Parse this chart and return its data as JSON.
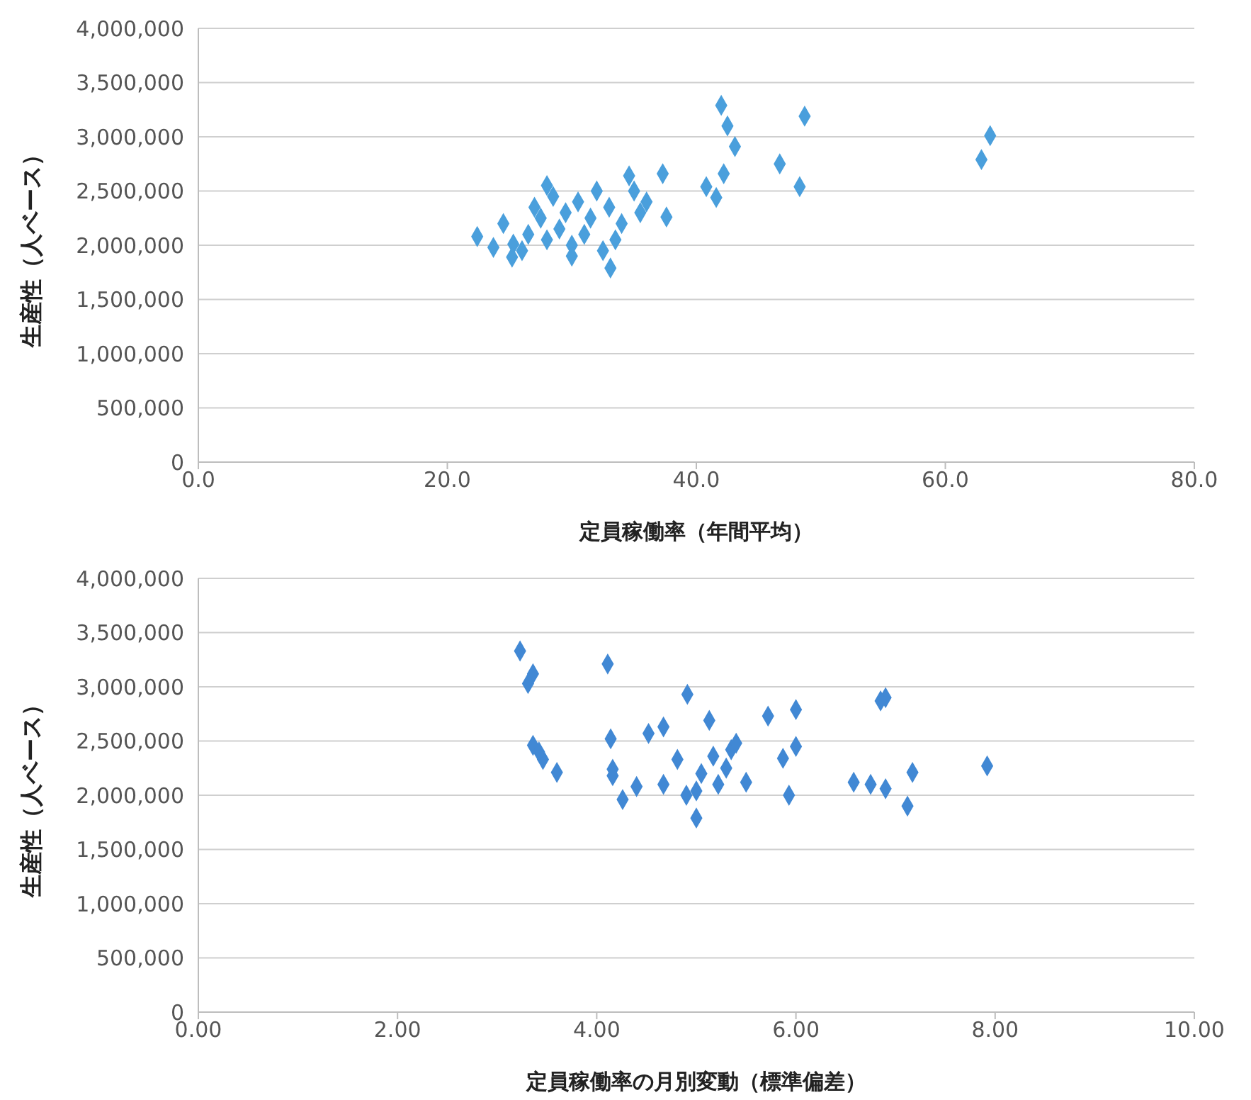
{
  "chart_data": [
    {
      "type": "scatter",
      "xlabel": "定員稼働率（年間平均）",
      "ylabel": "生産性（人ベース）",
      "color": "#4a9fdc",
      "marker": "diamond",
      "grid": "y",
      "x": [
        63.6,
        62.9,
        48.7,
        48.3,
        46.7,
        42.0,
        42.5,
        43.1,
        42.2,
        40.8,
        41.6,
        37.3,
        37.6,
        34.6,
        33.1,
        35.5,
        36.0,
        34.0,
        33.0,
        32.0,
        31.5,
        31.0,
        30.5,
        30.0,
        29.5,
        29.0,
        28.5,
        28.0,
        27.5,
        27.0,
        26.5,
        26.0,
        25.3,
        25.2,
        23.7,
        22.4,
        24.5,
        33.5,
        32.5,
        30.0,
        28.0,
        35.0
      ],
      "values": [
        3010000,
        2790000,
        3190000,
        2540000,
        2750000,
        3290000,
        3100000,
        2910000,
        2660000,
        2540000,
        2440000,
        2660000,
        2260000,
        2640000,
        1790000,
        2300000,
        2400000,
        2200000,
        2350000,
        2500000,
        2250000,
        2100000,
        2400000,
        2000000,
        2300000,
        2150000,
        2450000,
        2050000,
        2250000,
        2350000,
        2100000,
        1950000,
        2010000,
        1890000,
        1980000,
        2080000,
        2200000,
        2050000,
        1950000,
        1900000,
        2550000,
        2500000
      ],
      "xlim": [
        0,
        80
      ],
      "xticks": [
        {
          "value": 0,
          "label": "0.0"
        },
        {
          "value": 20,
          "label": "20.0"
        },
        {
          "value": 40,
          "label": "40.0"
        },
        {
          "value": 60,
          "label": "60.0"
        },
        {
          "value": 80,
          "label": "80.0"
        }
      ],
      "ylim": [
        0,
        4000000
      ],
      "yticks": [
        0,
        {
          "value": 500000,
          "label": "500,000"
        },
        {
          "value": 1000000,
          "label": "1,000,000"
        },
        {
          "value": 1500000,
          "label": "1,500,000"
        },
        {
          "value": 2000000,
          "label": "2,000,000"
        },
        {
          "value": 2500000,
          "label": "2,500,000"
        },
        {
          "value": 3000000,
          "label": "3,000,000"
        },
        {
          "value": 3500000,
          "label": "3,500,000"
        },
        {
          "value": 4000000,
          "label": "4,000,000"
        }
      ]
    },
    {
      "type": "scatter",
      "xlabel": "定員稼働率の月別変動（標準偏差）",
      "ylabel": "生産性（人ベース）",
      "color": "#4188d4",
      "marker": "diamond",
      "grid": "y",
      "x": [
        7.92,
        6.9,
        7.17,
        7.12,
        6.9,
        6.75,
        6.58,
        6.0,
        5.72,
        6.0,
        5.87,
        5.93,
        5.13,
        4.91,
        5.35,
        5.17,
        4.81,
        5.5,
        5.22,
        5.0,
        5.0,
        4.67,
        4.52,
        4.67,
        4.16,
        4.16,
        4.26,
        4.14,
        4.11,
        3.23,
        3.36,
        3.31,
        3.36,
        3.46,
        3.6,
        3.42,
        5.3,
        5.05,
        4.9,
        5.4,
        4.4,
        6.85
      ],
      "values": [
        2270000,
        2900000,
        2210000,
        1900000,
        2060000,
        2100000,
        2120000,
        2790000,
        2730000,
        2450000,
        2340000,
        2000000,
        2690000,
        2930000,
        2420000,
        2360000,
        2330000,
        2120000,
        2100000,
        2040000,
        1790000,
        2630000,
        2570000,
        2100000,
        2240000,
        2180000,
        1960000,
        2520000,
        3210000,
        3330000,
        3120000,
        3030000,
        2460000,
        2330000,
        2210000,
        2400000,
        2250000,
        2200000,
        2000000,
        2480000,
        2080000,
        2870000
      ],
      "xlim": [
        0,
        10
      ],
      "xticks": [
        {
          "value": 0,
          "label": "0.00"
        },
        {
          "value": 2,
          "label": "2.00"
        },
        {
          "value": 4,
          "label": "4.00"
        },
        {
          "value": 6,
          "label": "6.00"
        },
        {
          "value": 8,
          "label": "8.00"
        },
        {
          "value": 10,
          "label": "10.00"
        }
      ],
      "ylim": [
        0,
        4000000
      ],
      "yticks": [
        0,
        {
          "value": 500000,
          "label": "500,000"
        },
        {
          "value": 1000000,
          "label": "1,000,000"
        },
        {
          "value": 1500000,
          "label": "1,500,000"
        },
        {
          "value": 2000000,
          "label": "2,000,000"
        },
        {
          "value": 2500000,
          "label": "2,500,000"
        },
        {
          "value": 3000000,
          "label": "3,000,000"
        },
        {
          "value": 3500000,
          "label": "3,500,000"
        },
        {
          "value": 4000000,
          "label": "4,000,000"
        }
      ]
    }
  ]
}
